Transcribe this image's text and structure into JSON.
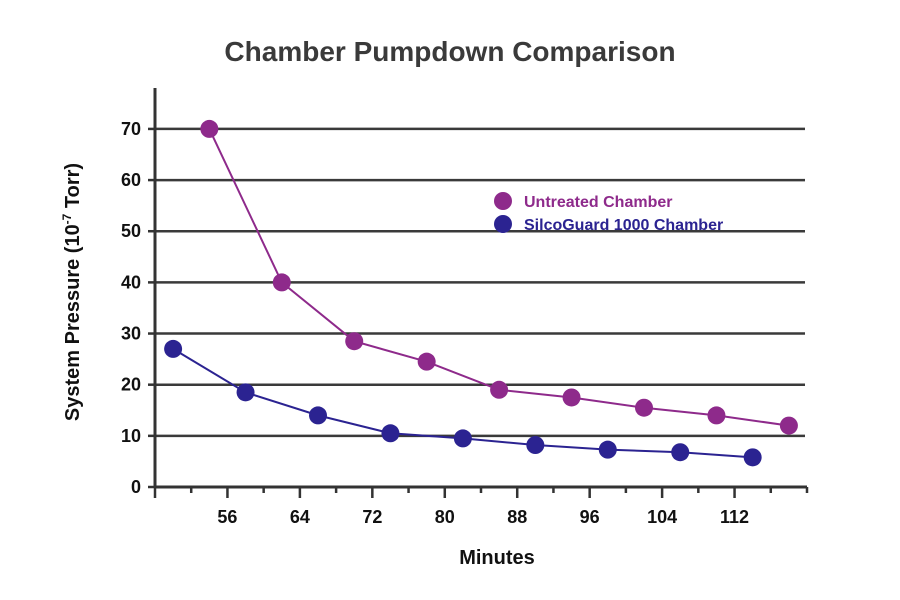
{
  "chart_data": {
    "type": "line",
    "title": "Chamber Pumpdown Comparison",
    "xlabel": "Minutes",
    "ylabel": "System Pressure (10",
    "ylabel_exp": "-7",
    "ylabel_tail": " Torr)",
    "xlim": [
      48,
      120
    ],
    "ylim": [
      0,
      78
    ],
    "xticks": [
      56,
      64,
      72,
      80,
      88,
      96,
      104,
      112
    ],
    "yticks": [
      0,
      10,
      20,
      30,
      40,
      50,
      60,
      70
    ],
    "grid": "horizontal",
    "legend_position": "top-right",
    "series": [
      {
        "name": "Untreated Chamber",
        "color": "#8e2a8b",
        "x": [
          54,
          62,
          70,
          78,
          86,
          94,
          102,
          110,
          118
        ],
        "y": [
          70,
          40,
          28.5,
          24.5,
          19,
          17.5,
          15.5,
          14,
          12
        ]
      },
      {
        "name": "SilcoGuard 1000 Chamber",
        "color": "#2b2391",
        "x": [
          50,
          58,
          66,
          74,
          82,
          90,
          98,
          106,
          114
        ],
        "y": [
          27,
          18.5,
          14,
          10.5,
          9.5,
          8.2,
          7.3,
          6.8,
          5.8
        ]
      }
    ]
  }
}
